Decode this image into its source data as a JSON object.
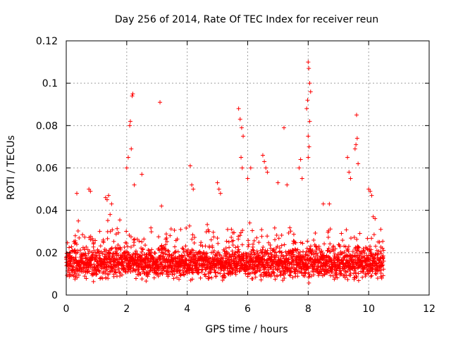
{
  "chart_data": {
    "type": "scatter",
    "title": "Day 256 of 2014, Rate Of TEC Index for receiver reun",
    "xlabel": "GPS time / hours",
    "ylabel": "ROTI / TECUs",
    "xlim": [
      0,
      12
    ],
    "ylim": [
      0,
      0.12
    ],
    "xticks": [
      0,
      2,
      4,
      6,
      8,
      10,
      12
    ],
    "yticks": [
      0,
      0.02,
      0.04,
      0.06,
      0.08,
      0.1,
      0.12
    ],
    "xtick_labels": [
      "0",
      "2",
      "4",
      "6",
      "8",
      "10",
      "12"
    ],
    "ytick_labels": [
      "0",
      "0.02",
      "0.04",
      "0.06",
      "0.08",
      "0.1",
      "0.12"
    ],
    "grid": true,
    "marker": "+",
    "color": "#ff0000",
    "x_range_of_data": [
      0,
      10.5
    ],
    "baseline_band": [
      0.005,
      0.025
    ],
    "series": [
      {
        "name": "ROTI",
        "points": [
          [
            0.1,
            0.02
          ],
          [
            0.3,
            0.028
          ],
          [
            0.35,
            0.048
          ],
          [
            0.4,
            0.035
          ],
          [
            0.75,
            0.05
          ],
          [
            0.8,
            0.049
          ],
          [
            1.3,
            0.046
          ],
          [
            1.35,
            0.045
          ],
          [
            1.4,
            0.047
          ],
          [
            1.45,
            0.038
          ],
          [
            1.5,
            0.043
          ],
          [
            2.0,
            0.06
          ],
          [
            2.05,
            0.065
          ],
          [
            2.1,
            0.08
          ],
          [
            2.12,
            0.082
          ],
          [
            2.15,
            0.069
          ],
          [
            2.18,
            0.094
          ],
          [
            2.2,
            0.095
          ],
          [
            2.25,
            0.052
          ],
          [
            2.5,
            0.057
          ],
          [
            3.1,
            0.091
          ],
          [
            3.15,
            0.042
          ],
          [
            4.1,
            0.061
          ],
          [
            4.15,
            0.052
          ],
          [
            4.2,
            0.05
          ],
          [
            5.0,
            0.053
          ],
          [
            5.05,
            0.05
          ],
          [
            5.1,
            0.048
          ],
          [
            5.7,
            0.088
          ],
          [
            5.75,
            0.083
          ],
          [
            5.8,
            0.079
          ],
          [
            5.85,
            0.075
          ],
          [
            5.78,
            0.065
          ],
          [
            5.82,
            0.06
          ],
          [
            6.0,
            0.055
          ],
          [
            6.1,
            0.06
          ],
          [
            6.5,
            0.066
          ],
          [
            6.55,
            0.063
          ],
          [
            6.6,
            0.06
          ],
          [
            6.65,
            0.058
          ],
          [
            7.0,
            0.053
          ],
          [
            7.2,
            0.079
          ],
          [
            7.3,
            0.052
          ],
          [
            7.7,
            0.06
          ],
          [
            7.75,
            0.064
          ],
          [
            7.8,
            0.055
          ],
          [
            7.95,
            0.088
          ],
          [
            7.98,
            0.092
          ],
          [
            8.0,
            0.11
          ],
          [
            8.02,
            0.107
          ],
          [
            8.05,
            0.1
          ],
          [
            8.08,
            0.096
          ],
          [
            8.0,
            0.075
          ],
          [
            8.03,
            0.07
          ],
          [
            8.0,
            0.065
          ],
          [
            8.05,
            0.082
          ],
          [
            8.5,
            0.043
          ],
          [
            8.7,
            0.043
          ],
          [
            9.3,
            0.065
          ],
          [
            9.35,
            0.058
          ],
          [
            9.4,
            0.055
          ],
          [
            9.55,
            0.069
          ],
          [
            9.58,
            0.071
          ],
          [
            9.6,
            0.085
          ],
          [
            9.62,
            0.074
          ],
          [
            9.65,
            0.062
          ],
          [
            10.0,
            0.05
          ],
          [
            10.05,
            0.049
          ],
          [
            10.1,
            0.047
          ],
          [
            10.15,
            0.037
          ],
          [
            10.4,
            0.031
          ]
        ]
      }
    ]
  }
}
